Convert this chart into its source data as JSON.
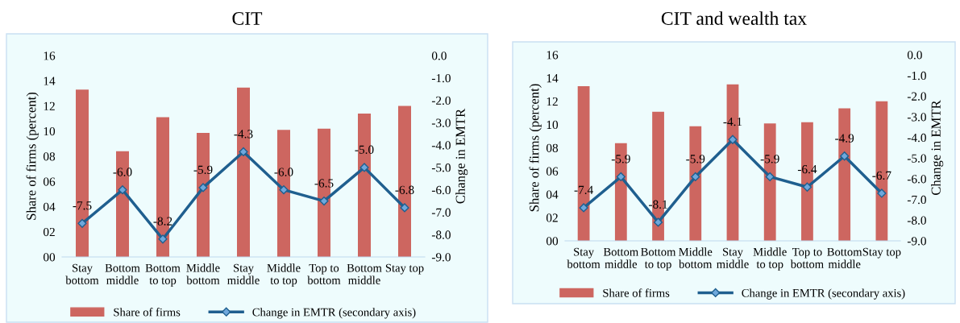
{
  "chart_data": [
    {
      "type": "bar",
      "title": "CIT",
      "ylabel": "Share of firms (percent)",
      "y2label": "Change in EMTR",
      "categories": [
        "Stay bottom",
        "Bottom middle",
        "Bottom to top",
        "Middle bottom",
        "Stay middle",
        "Middle to top",
        "Top to bottom",
        "Bottom middle",
        "Stay top"
      ],
      "series": [
        {
          "name": "Share of firms",
          "color": "#cd6660",
          "values": [
            13.3,
            8.4,
            11.1,
            9.85,
            13.45,
            10.1,
            10.2,
            11.4,
            12.0
          ]
        },
        {
          "name": "Change in EMTR (secondary axis)",
          "type": "line",
          "axis": "y2",
          "color": "#1f5f8f",
          "marker": "diamond",
          "values": [
            -7.5,
            -6.0,
            -8.2,
            -5.9,
            -4.3,
            -6.0,
            -6.5,
            -5.0,
            -6.8
          ],
          "value_labels": [
            "-7.5",
            "-6.0",
            "-8.2",
            "-5.9",
            "-4.3",
            "-6.0",
            "-6.5",
            "-5.0",
            "-6.8"
          ]
        }
      ],
      "ylim": [
        0,
        16
      ],
      "yticks": [
        {
          "value": 0,
          "label": "00"
        },
        {
          "value": 2,
          "label": "02"
        },
        {
          "value": 4,
          "label": "04"
        },
        {
          "value": 6,
          "label": "06"
        },
        {
          "value": 8,
          "label": "08"
        },
        10,
        12,
        14,
        16
      ],
      "y2lim": [
        -9,
        0
      ],
      "y2ticks": [
        {
          "value": 0,
          "label": "0.0"
        },
        {
          "value": -1,
          "label": "-1.0"
        },
        {
          "value": -2,
          "label": "-2.0"
        },
        {
          "value": -3,
          "label": "-3.0"
        },
        {
          "value": -4,
          "label": "-4.0"
        },
        {
          "value": -5,
          "label": "-5.0"
        },
        {
          "value": -6,
          "label": "-6.0"
        },
        {
          "value": -7,
          "label": "-7.0"
        },
        {
          "value": -8,
          "label": "-8.0"
        },
        {
          "value": -9,
          "label": "-9.0"
        }
      ],
      "legend": "bottom",
      "grid": false
    },
    {
      "type": "bar",
      "title": "CIT and wealth tax",
      "ylabel": "Share of firms (percent)",
      "y2label": "Change in EMTR",
      "categories": [
        "Stay bottom",
        "Bottom middle",
        "Bottom to top",
        "Middle bottom",
        "Stay middle",
        "Middle to top",
        "Top to bottom",
        "Bottom middle",
        "Stay top"
      ],
      "series": [
        {
          "name": "Share of firms",
          "color": "#cd6660",
          "values": [
            13.3,
            8.4,
            11.1,
            9.85,
            13.45,
            10.1,
            10.2,
            11.4,
            12.0
          ]
        },
        {
          "name": "Change in EMTR (secondary axis)",
          "type": "line",
          "axis": "y2",
          "color": "#1f5f8f",
          "marker": "diamond",
          "values": [
            -7.4,
            -5.9,
            -8.1,
            -5.9,
            -4.1,
            -5.9,
            -6.4,
            -4.9,
            -6.7
          ],
          "value_labels": [
            "-7.4",
            "-5.9",
            "-8.1",
            "-5.9",
            "-4.1",
            "-5.9",
            "-6.4",
            "-4.9",
            "-6.7"
          ]
        }
      ],
      "ylim": [
        0,
        16
      ],
      "yticks": [
        {
          "value": 0,
          "label": "00"
        },
        {
          "value": 2,
          "label": "02"
        },
        {
          "value": 4,
          "label": "04"
        },
        {
          "value": 6,
          "label": "06"
        },
        {
          "value": 8,
          "label": "08"
        },
        10,
        12,
        14,
        16
      ],
      "y2lim": [
        -9,
        0
      ],
      "y2ticks": [
        {
          "value": 0,
          "label": "0.0"
        },
        {
          "value": -1,
          "label": "-1.0"
        },
        {
          "value": -2,
          "label": "-2.0"
        },
        {
          "value": -3,
          "label": "-3.0"
        },
        {
          "value": -4,
          "label": "-4.0"
        },
        {
          "value": -5,
          "label": "-5.0"
        },
        {
          "value": -6,
          "label": "-6.0"
        },
        {
          "value": -7,
          "label": "-7.0"
        },
        {
          "value": -8,
          "label": "-8.0"
        },
        {
          "value": -9,
          "label": "-9.0"
        }
      ],
      "legend": "bottom",
      "grid": false
    }
  ]
}
